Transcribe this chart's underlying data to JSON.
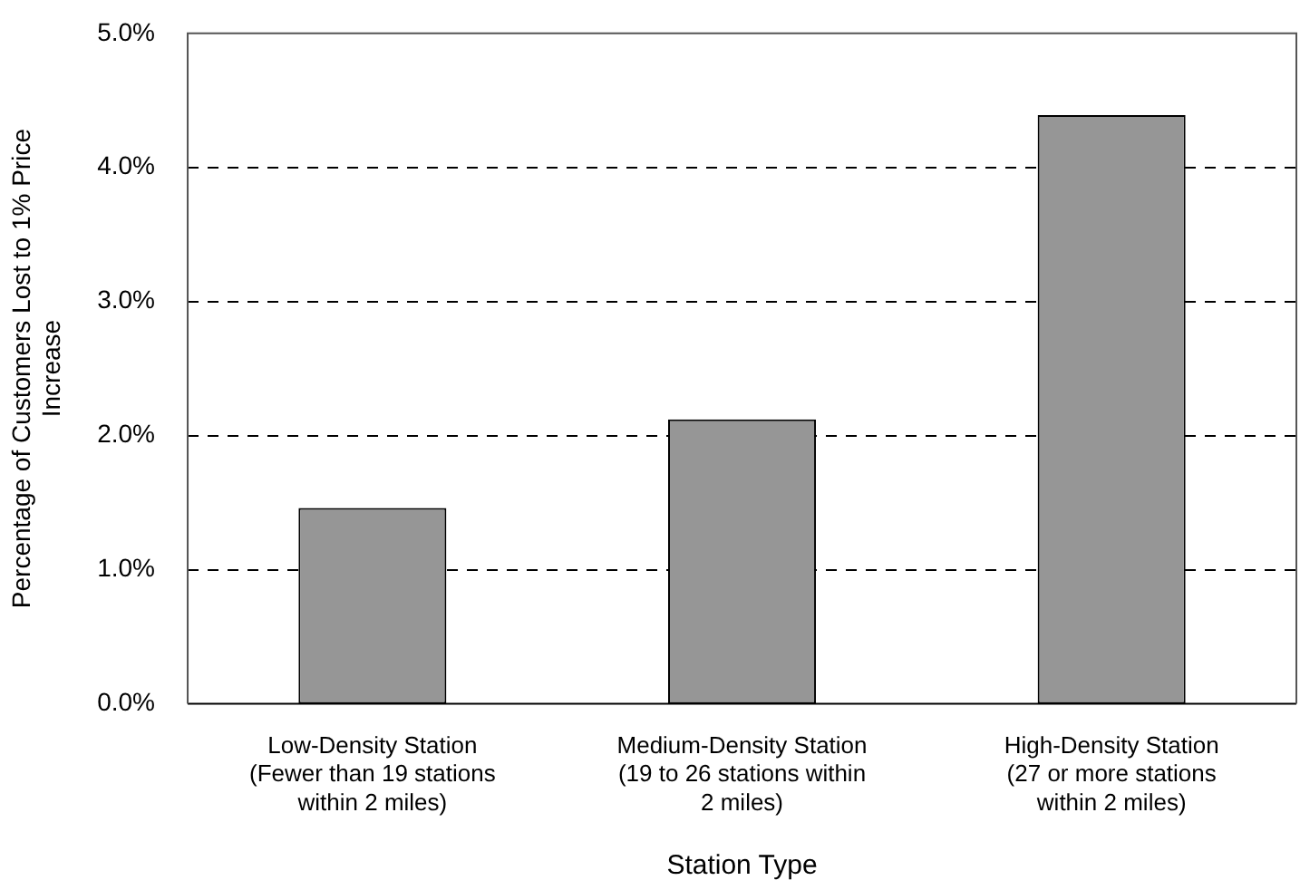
{
  "chart_data": {
    "type": "bar",
    "xlabel": "Station Type",
    "ylabel": "Percentage of Customers Lost to 1% Price\nIncrease",
    "categories": [
      "Low-Density Station\n(Fewer than 19 stations\nwithin 2 miles)",
      "Medium-Density Station\n(19 to 26 stations within\n2 miles)",
      "High-Density Station\n(27 or more stations\nwithin 2 miles)"
    ],
    "values": [
      1.46,
      2.12,
      4.39
    ],
    "color": "#969696",
    "ylim": [
      0,
      5
    ],
    "yticks": [
      {
        "value": 0,
        "label": "0.0%"
      },
      {
        "value": 1,
        "label": "1.0%"
      },
      {
        "value": 2,
        "label": "2.0%"
      },
      {
        "value": 3,
        "label": "3.0%"
      },
      {
        "value": 4,
        "label": "4.0%"
      },
      {
        "value": 5,
        "label": "5.0%"
      }
    ],
    "grid": "y",
    "legend": false
  }
}
